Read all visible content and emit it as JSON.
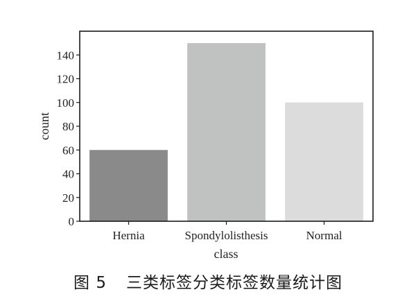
{
  "chart_data": {
    "type": "bar",
    "categories": [
      "Hernia",
      "Spondylolisthesis",
      "Normal"
    ],
    "values": [
      60,
      150,
      100
    ],
    "colors": [
      "#8a8a8a",
      "#c0c1c1",
      "#dcdcdc"
    ],
    "xlabel": "class",
    "ylabel": "count",
    "ylim": [
      0,
      160
    ],
    "yticks": [
      0,
      20,
      40,
      60,
      80,
      100,
      120,
      140
    ],
    "grid": false,
    "legend": "none"
  },
  "caption": {
    "label": "图 5",
    "text": "三类标签分类标签数量统计图"
  }
}
